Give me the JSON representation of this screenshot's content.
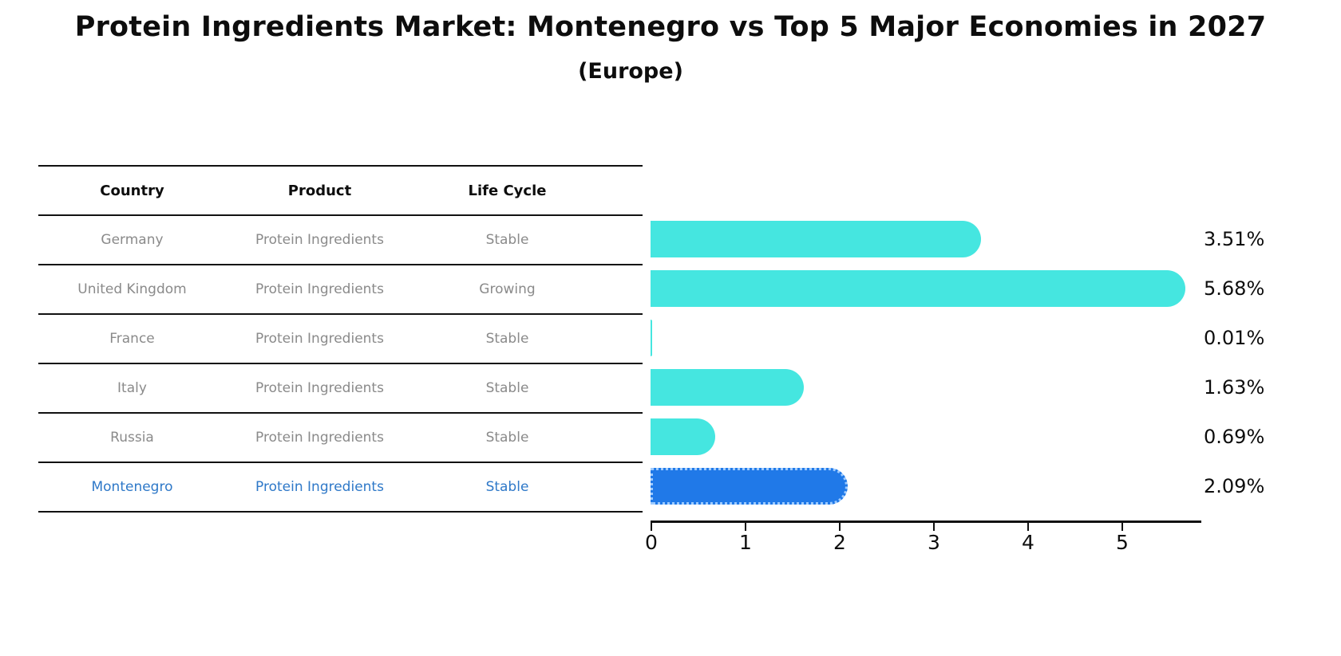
{
  "title": "Protein Ingredients Market: Montenegro vs Top 5 Major Economies in 2027",
  "subtitle": "(Europe)",
  "table": {
    "headers": {
      "country": "Country",
      "product": "Product",
      "life_cycle": "Life Cycle"
    },
    "rows": [
      {
        "country": "Germany",
        "product": "Protein Ingredients",
        "life_cycle": "Stable",
        "highlight": false
      },
      {
        "country": "United Kingdom",
        "product": "Protein Ingredients",
        "life_cycle": "Growing",
        "highlight": false
      },
      {
        "country": "France",
        "product": "Protein Ingredients",
        "life_cycle": "Stable",
        "highlight": false
      },
      {
        "country": "Italy",
        "product": "Protein Ingredients",
        "life_cycle": "Stable",
        "highlight": false
      },
      {
        "country": "Russia",
        "product": "Protein Ingredients",
        "life_cycle": "Stable",
        "highlight": false
      },
      {
        "country": "Montenegro",
        "product": "Protein Ingredients",
        "life_cycle": "Stable",
        "highlight": true
      }
    ]
  },
  "chart_data": {
    "type": "bar",
    "orientation": "horizontal",
    "title": "Protein Ingredients Market: Montenegro vs Top 5 Major Economies in 2027 (Europe)",
    "categories": [
      "Germany",
      "United Kingdom",
      "France",
      "Italy",
      "Russia",
      "Montenegro"
    ],
    "values": [
      3.51,
      5.68,
      0.01,
      1.63,
      0.69,
      2.09
    ],
    "value_labels": [
      "3.51%",
      "5.68%",
      "0.01%",
      "1.63%",
      "0.69%",
      "2.09%"
    ],
    "xlim": [
      0,
      5.85
    ],
    "xticks": [
      "0",
      "1",
      "2",
      "3",
      "4",
      "5"
    ],
    "grid": false,
    "legend": false,
    "bar_color": "#45e6e0",
    "highlight_color": "#2079e8",
    "highlight_index": 5,
    "highlight_text_color": "#2e78c8"
  }
}
